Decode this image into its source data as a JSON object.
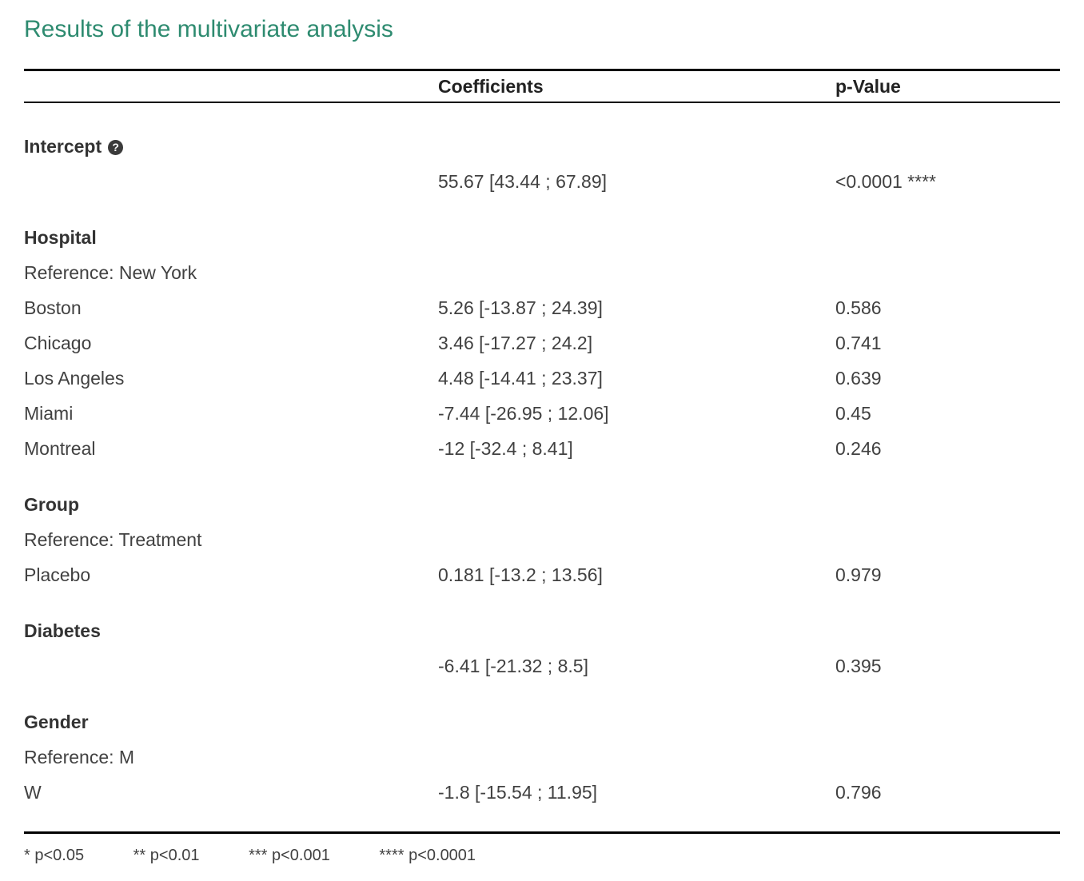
{
  "title": "Results of the multivariate analysis",
  "colors": {
    "title_accent": "#2E8B70"
  },
  "icons": {
    "help": "?"
  },
  "columns": {
    "coefficients": "Coefficients",
    "pvalue": "p-Value"
  },
  "sections": [
    {
      "name": "Intercept",
      "reference": "",
      "rows": [
        {
          "label": "",
          "coefficient": "55.67 [43.44 ; 67.89]",
          "pvalue": "<0.0001 ****"
        }
      ]
    },
    {
      "name": "Hospital",
      "reference": "Reference: New York",
      "rows": [
        {
          "label": "Boston",
          "coefficient": "5.26 [-13.87 ; 24.39]",
          "pvalue": "0.586"
        },
        {
          "label": "Chicago",
          "coefficient": "3.46 [-17.27 ; 24.2]",
          "pvalue": "0.741"
        },
        {
          "label": "Los Angeles",
          "coefficient": "4.48 [-14.41 ; 23.37]",
          "pvalue": "0.639"
        },
        {
          "label": "Miami",
          "coefficient": "-7.44 [-26.95 ; 12.06]",
          "pvalue": "0.45"
        },
        {
          "label": "Montreal",
          "coefficient": "-12 [-32.4 ; 8.41]",
          "pvalue": "0.246"
        }
      ]
    },
    {
      "name": "Group",
      "reference": "Reference: Treatment",
      "rows": [
        {
          "label": "Placebo",
          "coefficient": "0.181 [-13.2 ; 13.56]",
          "pvalue": "0.979"
        }
      ]
    },
    {
      "name": "Diabetes",
      "reference": "",
      "rows": [
        {
          "label": "",
          "coefficient": "-6.41 [-21.32 ; 8.5]",
          "pvalue": "0.395"
        }
      ]
    },
    {
      "name": "Gender",
      "reference": "Reference: M",
      "rows": [
        {
          "label": "W",
          "coefficient": "-1.8 [-15.54 ; 11.95]",
          "pvalue": "0.796"
        }
      ]
    }
  ],
  "footnotes": [
    "* p<0.05",
    "** p<0.01",
    "*** p<0.001",
    "**** p<0.0001"
  ]
}
